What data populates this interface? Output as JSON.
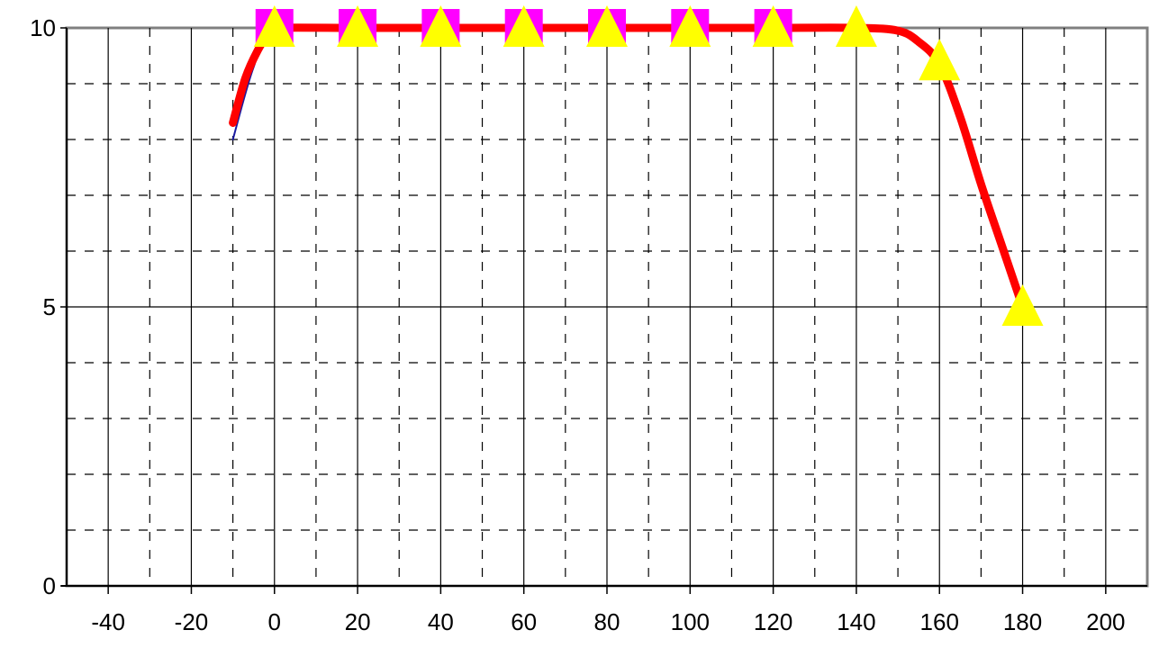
{
  "chart_data": {
    "type": "line",
    "title": "",
    "xlabel": "",
    "ylabel": "",
    "xlim": [
      -50,
      210
    ],
    "ylim": [
      0,
      10
    ],
    "x_ticks": [
      -40,
      -20,
      0,
      20,
      40,
      60,
      80,
      100,
      120,
      140,
      160,
      180,
      200
    ],
    "y_ticks": [
      0,
      5,
      10
    ],
    "x_tick_labels": [
      "-40",
      "-20",
      "0",
      "20",
      "40",
      "60",
      "80",
      "100",
      "120",
      "140",
      "160",
      "180",
      "200"
    ],
    "y_tick_labels": [
      "0",
      "5",
      "10"
    ],
    "grid": true,
    "legend": "none",
    "series": [
      {
        "marker": "none",
        "color": "#1a1aa0",
        "line_style": "thin",
        "x": [
          -10,
          -5,
          0,
          20,
          40,
          60,
          80,
          100,
          120
        ],
        "y": [
          8.0,
          9.3,
          10,
          10,
          10,
          10,
          10,
          10,
          10
        ]
      },
      {
        "marker": "square",
        "color": "#ff00ff",
        "line_style": "none",
        "x": [
          0,
          20,
          40,
          60,
          80,
          100,
          120
        ],
        "y": [
          10,
          10,
          10,
          10,
          10,
          10,
          10
        ]
      },
      {
        "marker": "none",
        "color": "#ff0000",
        "line_style": "thick",
        "x": [
          -10,
          -7,
          -4,
          -1,
          0,
          20,
          40,
          60,
          80,
          100,
          120,
          140,
          150,
          155,
          160,
          165,
          170,
          175,
          180
        ],
        "y": [
          8.3,
          9.1,
          9.6,
          9.95,
          10,
          10,
          10,
          10,
          10,
          10,
          10,
          10,
          9.95,
          9.75,
          9.35,
          8.4,
          7.2,
          6.1,
          5.0
        ]
      },
      {
        "marker": "triangle",
        "color": "#ffff00",
        "line_style": "none",
        "x": [
          0,
          20,
          40,
          60,
          80,
          100,
          120,
          140,
          160,
          180
        ],
        "y": [
          10,
          10,
          10,
          10,
          10,
          10,
          10,
          10,
          9.4,
          5.0
        ]
      }
    ]
  }
}
